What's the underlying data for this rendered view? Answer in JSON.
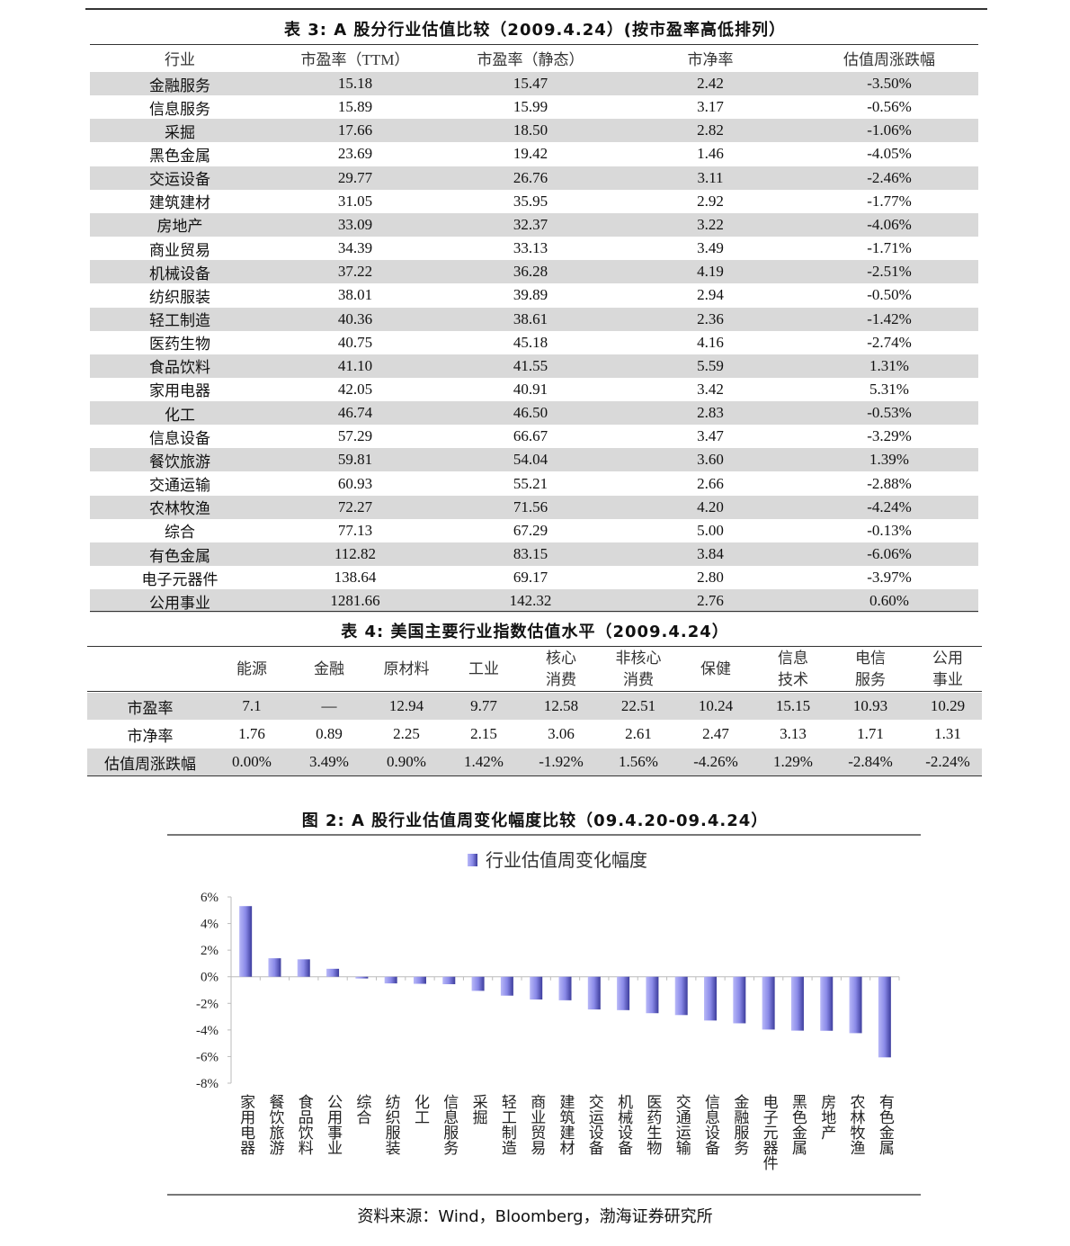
{
  "table3": {
    "title": "表 3: A 股分行业估值比较（2009.4.24）(按市盈率高低排列）",
    "headers": [
      "行业",
      "市盈率（TTM）",
      "市盈率（静态）",
      "市净率",
      "估值周涨跌幅"
    ],
    "rows": [
      [
        "金融服务",
        "15.18",
        "15.47",
        "2.42",
        "-3.50%"
      ],
      [
        "信息服务",
        "15.89",
        "15.99",
        "3.17",
        "-0.56%"
      ],
      [
        "采掘",
        "17.66",
        "18.50",
        "2.82",
        "-1.06%"
      ],
      [
        "黑色金属",
        "23.69",
        "19.42",
        "1.46",
        "-4.05%"
      ],
      [
        "交运设备",
        "29.77",
        "26.76",
        "3.11",
        "-2.46%"
      ],
      [
        "建筑建材",
        "31.05",
        "35.95",
        "2.92",
        "-1.77%"
      ],
      [
        "房地产",
        "33.09",
        "32.37",
        "3.22",
        "-4.06%"
      ],
      [
        "商业贸易",
        "34.39",
        "33.13",
        "3.49",
        "-1.71%"
      ],
      [
        "机械设备",
        "37.22",
        "36.28",
        "4.19",
        "-2.51%"
      ],
      [
        "纺织服装",
        "38.01",
        "39.89",
        "2.94",
        "-0.50%"
      ],
      [
        "轻工制造",
        "40.36",
        "38.61",
        "2.36",
        "-1.42%"
      ],
      [
        "医药生物",
        "40.75",
        "45.18",
        "4.16",
        "-2.74%"
      ],
      [
        "食品饮料",
        "41.10",
        "41.55",
        "5.59",
        "1.31%"
      ],
      [
        "家用电器",
        "42.05",
        "40.91",
        "3.42",
        "5.31%"
      ],
      [
        "化工",
        "46.74",
        "46.50",
        "2.83",
        "-0.53%"
      ],
      [
        "信息设备",
        "57.29",
        "66.67",
        "3.47",
        "-3.29%"
      ],
      [
        "餐饮旅游",
        "59.81",
        "54.04",
        "3.60",
        "1.39%"
      ],
      [
        "交通运输",
        "60.93",
        "55.21",
        "2.66",
        "-2.88%"
      ],
      [
        "农林牧渔",
        "72.27",
        "71.56",
        "4.20",
        "-4.24%"
      ],
      [
        "综合",
        "77.13",
        "67.29",
        "5.00",
        "-0.13%"
      ],
      [
        "有色金属",
        "112.82",
        "83.15",
        "3.84",
        "-6.06%"
      ],
      [
        "电子元器件",
        "138.64",
        "69.17",
        "2.80",
        "-3.97%"
      ],
      [
        "公用事业",
        "1281.66",
        "142.32",
        "2.76",
        "0.60%"
      ]
    ]
  },
  "table4": {
    "title": "表 4: 美国主要行业指数估值水平（2009.4.24）",
    "headers": [
      "",
      "能源",
      "金融",
      "原材料",
      "工业",
      "核心\n消费",
      "非核心\n消费",
      "保健",
      "信息\n技术",
      "电信\n服务",
      "公用\n事业"
    ],
    "rows": [
      [
        "市盈率",
        "7.1",
        "—",
        "12.94",
        "9.77",
        "12.58",
        "22.51",
        "10.24",
        "15.15",
        "10.93",
        "10.29"
      ],
      [
        "市净率",
        "1.76",
        "0.89",
        "2.25",
        "2.15",
        "3.06",
        "2.61",
        "2.47",
        "3.13",
        "1.71",
        "1.31"
      ],
      [
        "估值周涨跌幅",
        "0.00%",
        "3.49%",
        "0.90%",
        "1.42%",
        "-1.92%",
        "1.56%",
        "-4.26%",
        "1.29%",
        "-2.84%",
        "-2.24%"
      ]
    ]
  },
  "chart_data": {
    "type": "bar",
    "title": "图 2: A 股行业估值周变化幅度比较（09.4.20-09.4.24）",
    "legend": "行业估值周变化幅度",
    "legend_position": "top",
    "bar_color": "#8080e0",
    "categories": [
      "家用电器",
      "餐饮旅游",
      "食品饮料",
      "公用事业",
      "综合",
      "纺织服装",
      "化工",
      "信息服务",
      "采掘",
      "轻工制造",
      "商业贸易",
      "建筑建材",
      "交运设备",
      "机械设备",
      "医药生物",
      "交通运输",
      "信息设备",
      "金融服务",
      "电子元器件",
      "黑色金属",
      "房地产",
      "农林牧渔",
      "有色金属"
    ],
    "series": [
      {
        "name": "行业估值周变化幅度",
        "values": [
          5.31,
          1.39,
          1.31,
          0.6,
          -0.13,
          -0.5,
          -0.53,
          -0.56,
          -1.06,
          -1.42,
          -1.71,
          -1.77,
          -2.46,
          -2.51,
          -2.74,
          -2.88,
          -3.29,
          -3.5,
          -3.97,
          -4.05,
          -4.06,
          -4.24,
          -6.06
        ]
      }
    ],
    "ylim": [
      -8,
      6
    ],
    "yticks": [
      "6%",
      "4%",
      "2%",
      "0%",
      "-2%",
      "-4%",
      "-6%",
      "-8%"
    ],
    "grid": false
  },
  "source": "资料来源：Wind，Bloomberg，渤海证券研究所"
}
